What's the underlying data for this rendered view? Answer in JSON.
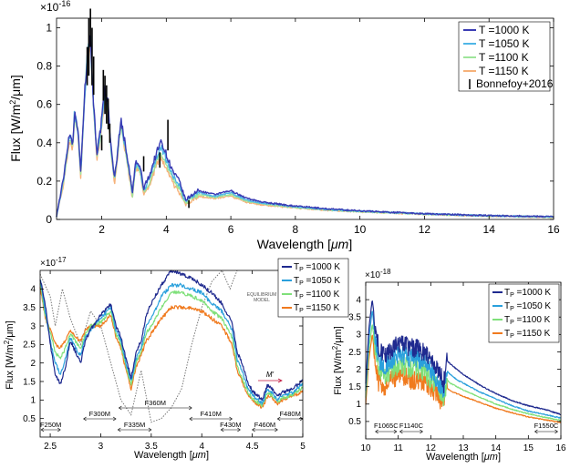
{
  "chart_data": [
    {
      "type": "line",
      "multiplier_label": "×10",
      "multiplier_exp": "-16",
      "xlabel": "Wavelength [",
      "xlabel_unit": "μm",
      "xlabel_end": "]",
      "ylabel": "Flux [W/m",
      "ylabel_sup": "2",
      "ylabel_end": "/μm]",
      "xlim": [
        0.6,
        16
      ],
      "ylim": [
        0,
        1.05
      ],
      "xticks": [
        2,
        4,
        6,
        8,
        10,
        12,
        14,
        16
      ],
      "xtick_labels": [
        "2",
        "4",
        "6",
        "8",
        "10",
        "12",
        "14",
        "16"
      ],
      "yticks": [
        0,
        0.2,
        0.4,
        0.6,
        0.8,
        1
      ],
      "ytick_labels": [
        "0",
        "0.2",
        "0.4",
        "0.6",
        "0.8",
        "1"
      ],
      "legend_position": "top-right",
      "series": [
        {
          "name": "T =1000 K",
          "color": "#3a3cb4"
        },
        {
          "name": "T =1050 K",
          "color": "#4fb6e6"
        },
        {
          "name": "T =1100 K",
          "color": "#9ee59a"
        },
        {
          "name": "T =1150 K",
          "color": "#f6b27a"
        }
      ],
      "observations": {
        "name": "Bonnefoy+2016",
        "color": "#000000",
        "points": [
          [
            1.55,
            0.8,
            0.1
          ],
          [
            1.6,
            0.9,
            0.15
          ],
          [
            1.65,
            1.0,
            0.1
          ],
          [
            1.7,
            0.85,
            0.15
          ],
          [
            1.75,
            0.75,
            0.1
          ],
          [
            2.05,
            0.7,
            0.08
          ],
          [
            2.1,
            0.65,
            0.1
          ],
          [
            2.15,
            0.6,
            0.1
          ],
          [
            2.2,
            0.55,
            0.08
          ],
          [
            2.25,
            0.45,
            0.05
          ],
          [
            2.0,
            0.4,
            0.04
          ],
          [
            3.3,
            0.29,
            0.04
          ],
          [
            3.8,
            0.31,
            0.04
          ],
          [
            4.05,
            0.44,
            0.08
          ],
          [
            4.7,
            0.08,
            0.02
          ]
        ]
      },
      "model_anchors": {
        "x": [
          0.6,
          0.8,
          1.0,
          1.1,
          1.15,
          1.25,
          1.35,
          1.45,
          1.55,
          1.65,
          1.75,
          1.85,
          1.95,
          2.1,
          2.2,
          2.3,
          2.4,
          2.6,
          2.8,
          2.95,
          3.05,
          3.2,
          3.3,
          3.5,
          3.7,
          3.85,
          4.0,
          4.2,
          4.4,
          4.6,
          4.8,
          5.0,
          5.5,
          6.0,
          6.5,
          7.0,
          8.0,
          9.0,
          10.0,
          12.0,
          14.0,
          16.0
        ],
        "series_values": [
          [
            0.02,
            0.2,
            0.45,
            0.4,
            0.55,
            0.5,
            0.25,
            0.6,
            0.85,
            0.95,
            0.6,
            0.35,
            0.45,
            0.68,
            0.6,
            0.35,
            0.22,
            0.52,
            0.32,
            0.14,
            0.3,
            0.27,
            0.16,
            0.24,
            0.35,
            0.41,
            0.34,
            0.25,
            0.2,
            0.1,
            0.13,
            0.15,
            0.13,
            0.15,
            0.11,
            0.09,
            0.07,
            0.055,
            0.045,
            0.03,
            0.02,
            0.015
          ],
          [
            0.02,
            0.19,
            0.44,
            0.39,
            0.54,
            0.49,
            0.24,
            0.59,
            0.84,
            0.94,
            0.59,
            0.34,
            0.44,
            0.67,
            0.59,
            0.34,
            0.21,
            0.51,
            0.31,
            0.13,
            0.29,
            0.26,
            0.15,
            0.22,
            0.33,
            0.38,
            0.31,
            0.23,
            0.18,
            0.09,
            0.12,
            0.14,
            0.12,
            0.14,
            0.1,
            0.085,
            0.065,
            0.052,
            0.043,
            0.029,
            0.019,
            0.014
          ],
          [
            0.02,
            0.18,
            0.43,
            0.38,
            0.53,
            0.48,
            0.23,
            0.58,
            0.83,
            0.93,
            0.58,
            0.33,
            0.43,
            0.66,
            0.58,
            0.33,
            0.2,
            0.5,
            0.3,
            0.12,
            0.28,
            0.25,
            0.14,
            0.2,
            0.31,
            0.35,
            0.29,
            0.21,
            0.16,
            0.085,
            0.11,
            0.13,
            0.115,
            0.13,
            0.095,
            0.08,
            0.062,
            0.05,
            0.041,
            0.028,
            0.018,
            0.013
          ],
          [
            0.02,
            0.17,
            0.42,
            0.37,
            0.52,
            0.47,
            0.22,
            0.57,
            0.82,
            0.92,
            0.57,
            0.32,
            0.42,
            0.65,
            0.57,
            0.32,
            0.19,
            0.49,
            0.29,
            0.11,
            0.27,
            0.24,
            0.13,
            0.18,
            0.29,
            0.32,
            0.27,
            0.19,
            0.14,
            0.08,
            0.1,
            0.12,
            0.11,
            0.12,
            0.09,
            0.075,
            0.06,
            0.048,
            0.04,
            0.027,
            0.017,
            0.012
          ]
        ]
      }
    },
    {
      "type": "line",
      "multiplier_label": "×10",
      "multiplier_exp": "-17",
      "xlabel": "Wavelength [",
      "xlabel_unit": "μm",
      "xlabel_end": "]",
      "ylabel": "Flux [W/m",
      "ylabel_sup": "2",
      "ylabel_end": "/μm]",
      "xlim": [
        2.4,
        5.0
      ],
      "ylim": [
        0,
        4.5
      ],
      "xticks": [
        2.5,
        3,
        3.5,
        4,
        4.5,
        5
      ],
      "xtick_labels": [
        "2.5",
        "3",
        "3.5",
        "4",
        "4.5",
        "5"
      ],
      "yticks": [
        0.5,
        1,
        1.5,
        2,
        2.5,
        3,
        3.5,
        4
      ],
      "ytick_labels": [
        "0.5",
        "1",
        "1.5",
        "2",
        "2.5",
        "3",
        "3.5",
        "4"
      ],
      "legend_position": "top-right",
      "series": [
        {
          "name": "T",
          "sub": "P",
          "rest": " =1000 K",
          "color": "#1f2a8f"
        },
        {
          "name": "T",
          "sub": "P",
          "rest": " =1050 K",
          "color": "#2aa0dc"
        },
        {
          "name": "T",
          "sub": "P",
          "rest": " =1100 K",
          "color": "#7fe07a"
        },
        {
          "name": "T",
          "sub": "P",
          "rest": " =1150 K",
          "color": "#f07a1e"
        }
      ],
      "equilibrium_label_1": "EQUILIBRIUM",
      "equilibrium_label_2": "MODEL",
      "band_label": "M'",
      "filters": [
        {
          "label": "F250M",
          "x0": 2.41,
          "x1": 2.6,
          "row": 0
        },
        {
          "label": "F300M",
          "x0": 2.83,
          "x1": 3.15,
          "row": 1
        },
        {
          "label": "F335M",
          "x0": 3.17,
          "x1": 3.5,
          "row": 0
        },
        {
          "label": "F360M",
          "x0": 3.18,
          "x1": 3.9,
          "row": 2
        },
        {
          "label": "F410M",
          "x0": 3.88,
          "x1": 4.3,
          "row": 1
        },
        {
          "label": "F430M",
          "x0": 4.19,
          "x1": 4.38,
          "row": 0
        },
        {
          "label": "F460M",
          "x0": 4.5,
          "x1": 4.75,
          "row": 0
        },
        {
          "label": "F480M",
          "x0": 4.75,
          "x1": 5.0,
          "row": 1
        }
      ],
      "model_anchors": {
        "x": [
          2.4,
          2.45,
          2.5,
          2.55,
          2.6,
          2.65,
          2.7,
          2.75,
          2.8,
          2.85,
          2.9,
          3.0,
          3.1,
          3.15,
          3.2,
          3.25,
          3.3,
          3.35,
          3.4,
          3.45,
          3.5,
          3.6,
          3.7,
          3.8,
          3.9,
          4.0,
          4.1,
          4.2,
          4.3,
          4.35,
          4.4,
          4.45,
          4.5,
          4.6,
          4.65,
          4.7,
          4.75,
          4.8,
          4.9,
          5.0
        ],
        "series_values": [
          [
            4.3,
            3.6,
            2.5,
            1.7,
            1.4,
            1.9,
            2.6,
            2.3,
            2.0,
            2.6,
            2.9,
            3.3,
            3.6,
            3.0,
            2.7,
            2.1,
            1.6,
            2.3,
            2.6,
            3.3,
            3.6,
            4.1,
            4.5,
            4.4,
            4.3,
            4.1,
            3.9,
            3.6,
            3.1,
            2.3,
            2.0,
            1.5,
            1.25,
            1.0,
            1.4,
            1.3,
            1.1,
            1.2,
            1.3,
            1.55
          ],
          [
            4.3,
            3.4,
            2.6,
            2.0,
            1.7,
            2.1,
            2.7,
            2.4,
            2.2,
            2.7,
            2.9,
            3.2,
            3.5,
            2.9,
            2.6,
            2.0,
            1.5,
            2.1,
            2.4,
            3.0,
            3.2,
            3.8,
            4.1,
            4.1,
            4.0,
            3.9,
            3.6,
            3.4,
            2.9,
            2.1,
            1.8,
            1.35,
            1.15,
            0.9,
            1.3,
            1.2,
            1.0,
            1.1,
            1.2,
            1.45
          ],
          [
            4.2,
            3.3,
            2.8,
            2.3,
            2.1,
            2.4,
            2.8,
            2.6,
            2.4,
            2.8,
            3.0,
            3.1,
            3.4,
            2.8,
            2.5,
            1.9,
            1.4,
            2.0,
            2.3,
            2.8,
            3.0,
            3.5,
            3.9,
            3.9,
            3.8,
            3.7,
            3.4,
            3.2,
            2.7,
            1.9,
            1.6,
            1.25,
            1.05,
            0.85,
            1.2,
            1.1,
            0.95,
            1.05,
            1.15,
            1.35
          ],
          [
            4.1,
            3.2,
            2.9,
            2.5,
            2.4,
            2.6,
            2.9,
            2.7,
            2.6,
            2.9,
            3.0,
            3.0,
            3.3,
            2.7,
            2.4,
            1.8,
            1.3,
            1.9,
            2.2,
            2.6,
            2.8,
            3.2,
            3.5,
            3.5,
            3.5,
            3.4,
            3.2,
            3.0,
            2.5,
            1.8,
            1.5,
            1.15,
            1.0,
            0.8,
            1.1,
            1.05,
            0.9,
            1.0,
            1.1,
            1.25
          ]
        ],
        "equilibrium_values": [
          {
            "x": 2.4,
            "y": 4.4
          },
          {
            "x": 2.5,
            "y": 3.8
          },
          {
            "x": 2.55,
            "y": 3.0
          },
          {
            "x": 2.62,
            "y": 4.0
          },
          {
            "x": 2.7,
            "y": 3.2
          },
          {
            "x": 2.8,
            "y": 2.5
          },
          {
            "x": 2.9,
            "y": 3.4
          },
          {
            "x": 3.0,
            "y": 3.0
          },
          {
            "x": 3.1,
            "y": 2.0
          },
          {
            "x": 3.2,
            "y": 1.0
          },
          {
            "x": 3.3,
            "y": 0.6
          },
          {
            "x": 3.4,
            "y": 1.8
          },
          {
            "x": 3.5,
            "y": 0.4
          },
          {
            "x": 3.6,
            "y": 0.5
          },
          {
            "x": 3.7,
            "y": 0.8
          },
          {
            "x": 3.8,
            "y": 1.3
          },
          {
            "x": 3.9,
            "y": 2.5
          },
          {
            "x": 4.0,
            "y": 3.5
          },
          {
            "x": 4.1,
            "y": 4.2
          },
          {
            "x": 4.2,
            "y": 4.6
          },
          {
            "x": 4.28,
            "y": 4.0
          },
          {
            "x": 4.35,
            "y": 4.6
          }
        ]
      }
    },
    {
      "type": "line",
      "multiplier_label": "×10",
      "multiplier_exp": "-18",
      "xlabel": "Wavelength [",
      "xlabel_unit": "μm",
      "xlabel_end": "]",
      "ylabel": "Flux [W/m",
      "ylabel_sup": "2",
      "ylabel_end": "/μm]",
      "xlim": [
        10,
        16
      ],
      "ylim": [
        0,
        4.5
      ],
      "xticks": [
        10,
        11,
        12,
        13,
        14,
        15,
        16
      ],
      "xtick_labels": [
        "10",
        "11",
        "12",
        "13",
        "14",
        "15",
        "16"
      ],
      "yticks": [
        0.5,
        1,
        1.5,
        2,
        2.5,
        3,
        3.5,
        4
      ],
      "ytick_labels": [
        "0.5",
        "1",
        "1.5",
        "2",
        "2.5",
        "3",
        "3.5",
        "4"
      ],
      "legend_position": "top-right",
      "series": [
        {
          "name": "T",
          "sub": "P",
          "rest": " =1000 K",
          "color": "#1f2a8f"
        },
        {
          "name": "T",
          "sub": "P",
          "rest": " =1050 K",
          "color": "#2aa0dc"
        },
        {
          "name": "T",
          "sub": "P",
          "rest": " =1100 K",
          "color": "#7fe07a"
        },
        {
          "name": "T",
          "sub": "P",
          "rest": " =1150 K",
          "color": "#f07a1e"
        }
      ],
      "filters": [
        {
          "label": "F1065C",
          "x0": 10.3,
          "x1": 10.95
        },
        {
          "label": "F1140C",
          "x0": 11.05,
          "x1": 11.75
        },
        {
          "label": "F1550C",
          "x0": 15.2,
          "x1": 15.9
        }
      ],
      "model_anchors": {
        "x": [
          10.0,
          10.1,
          10.2,
          10.3,
          10.4,
          10.6,
          10.8,
          11.0,
          11.2,
          11.4,
          11.6,
          11.8,
          12.0,
          12.2,
          12.4,
          12.5,
          12.6,
          12.8,
          13.0,
          13.5,
          14.0,
          14.5,
          15.0,
          15.5,
          16.0
        ],
        "series_values": [
          [
            1.6,
            3.2,
            4.0,
            3.2,
            2.6,
            2.4,
            2.6,
            2.7,
            2.7,
            2.6,
            2.6,
            2.5,
            2.3,
            2.0,
            1.6,
            2.25,
            2.15,
            2.0,
            1.85,
            1.55,
            1.3,
            1.1,
            0.95,
            0.85,
            0.7
          ],
          [
            1.4,
            2.9,
            3.7,
            2.9,
            2.3,
            2.1,
            2.3,
            2.4,
            2.4,
            2.3,
            2.3,
            2.2,
            2.0,
            1.7,
            1.4,
            1.95,
            1.85,
            1.7,
            1.6,
            1.35,
            1.15,
            0.95,
            0.8,
            0.7,
            0.6
          ],
          [
            1.2,
            2.6,
            3.3,
            2.6,
            2.0,
            1.8,
            2.0,
            2.1,
            2.1,
            2.0,
            2.0,
            1.9,
            1.7,
            1.45,
            1.2,
            1.7,
            1.6,
            1.5,
            1.4,
            1.2,
            1.0,
            0.85,
            0.72,
            0.62,
            0.53
          ],
          [
            1.0,
            2.3,
            3.0,
            2.3,
            1.6,
            1.5,
            1.7,
            1.8,
            1.8,
            1.7,
            1.7,
            1.6,
            1.5,
            1.25,
            1.0,
            1.45,
            1.38,
            1.3,
            1.22,
            1.05,
            0.88,
            0.75,
            0.63,
            0.55,
            0.47
          ]
        ]
      }
    }
  ]
}
